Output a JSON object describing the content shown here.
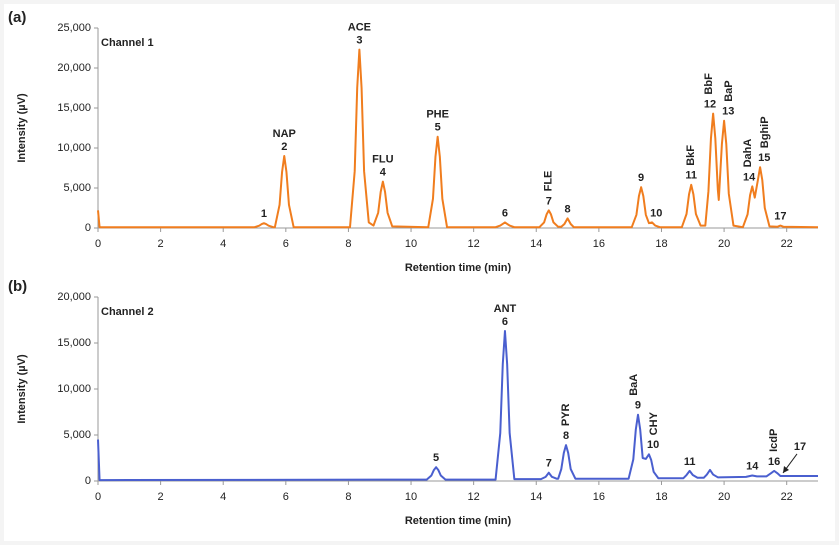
{
  "chart_data": [
    {
      "type": "line",
      "panel": "(a)",
      "channel": "Channel 1",
      "x_label": "Retention time (min)",
      "y_label": "Intensity (µV)",
      "xlim": [
        0,
        23
      ],
      "xticks": [
        0,
        2,
        4,
        6,
        8,
        10,
        12,
        14,
        16,
        18,
        20,
        22
      ],
      "ylim": [
        0,
        25000
      ],
      "yticks": [
        0,
        {
          "value": 5000,
          "label": "5,000"
        },
        {
          "value": 10000,
          "label": "10,000"
        },
        {
          "value": 15000,
          "label": "15,000"
        },
        {
          "value": 20000,
          "label": "20,000"
        },
        {
          "value": 25000,
          "label": "25,000"
        }
      ],
      "series": [
        {
          "color": "#f07d1e",
          "x": [
            0,
            0.05,
            5.0,
            5.15,
            5.23,
            5.3,
            5.37,
            5.45,
            5.6,
            5.65,
            5.8,
            5.88,
            5.95,
            6.02,
            6.1,
            6.25,
            8.05,
            8.2,
            8.28,
            8.35,
            8.42,
            8.5,
            8.65,
            8.8,
            8.95,
            9.03,
            9.1,
            9.17,
            9.25,
            9.4,
            10.55,
            10.7,
            10.78,
            10.85,
            10.92,
            11.0,
            11.15,
            12.7,
            12.85,
            13.0,
            13.15,
            13.3,
            14.1,
            14.25,
            14.33,
            14.4,
            14.47,
            14.55,
            14.7,
            14.8,
            14.9,
            15.0,
            15.1,
            15.2,
            17.05,
            17.2,
            17.28,
            17.35,
            17.42,
            17.5,
            17.6,
            17.7,
            17.8,
            17.95,
            18.65,
            18.8,
            18.88,
            18.95,
            19.02,
            19.1,
            19.25,
            19.4,
            19.5,
            19.58,
            19.65,
            19.72,
            19.8,
            19.83,
            19.93,
            20.0,
            20.07,
            20.15,
            20.3,
            20.6,
            20.75,
            20.83,
            20.9,
            20.98,
            21.08,
            21.15,
            21.22,
            21.3,
            21.45,
            21.7,
            21.8,
            21.9,
            23
          ],
          "values": [
            2200,
            100,
            100,
            290,
            490,
            600,
            490,
            290,
            100,
            100,
            2900,
            7000,
            9000,
            7000,
            2900,
            100,
            100,
            7100,
            17500,
            22300,
            17500,
            7100,
            700,
            300,
            1900,
            4500,
            5800,
            4500,
            1900,
            200,
            100,
            3650,
            8900,
            11400,
            8900,
            3650,
            100,
            100,
            300,
            700,
            300,
            100,
            100,
            700,
            1700,
            2200,
            1700,
            700,
            150,
            150,
            500,
            1200,
            500,
            100,
            100,
            1650,
            4000,
            5100,
            4000,
            1650,
            600,
            700,
            300,
            100,
            100,
            1750,
            4200,
            5400,
            4200,
            1750,
            300,
            300,
            4600,
            11200,
            14300,
            11200,
            4800,
            3500,
            10500,
            13400,
            10500,
            4300,
            300,
            100,
            1700,
            4100,
            5200,
            3800,
            6000,
            7600,
            6000,
            2500,
            200,
            150,
            300,
            150,
            100
          ]
        }
      ],
      "annotations": [
        {
          "label": "1",
          "x": 5.3,
          "y": 600
        },
        {
          "label": "2",
          "name": "NAP",
          "x": 5.95,
          "y": 9000
        },
        {
          "label": "3",
          "name": "ACE",
          "x": 8.35,
          "y": 22300
        },
        {
          "label": "4",
          "name": "FLU",
          "x": 9.1,
          "y": 5800
        },
        {
          "label": "5",
          "name": "PHE",
          "x": 10.85,
          "y": 11400
        },
        {
          "label": "6",
          "x": 13.0,
          "y": 700
        },
        {
          "label": "7",
          "name": "FLE",
          "x": 14.4,
          "y": 2200,
          "rotated": true
        },
        {
          "label": "8",
          "x": 15.0,
          "y": 1200
        },
        {
          "label": "9",
          "x": 17.35,
          "y": 5100
        },
        {
          "label": "10",
          "x": 17.7,
          "y": 700
        },
        {
          "label": "11",
          "name": "BkF",
          "x": 18.95,
          "y": 5400,
          "rotated": true
        },
        {
          "label": "12",
          "name": "BbF",
          "x": 19.65,
          "y": 14300,
          "rotated": true
        },
        {
          "label": "13",
          "name": "BaP",
          "x": 20.0,
          "y": 13400,
          "rotated": true
        },
        {
          "label": "14",
          "name": "DahA",
          "x": 20.9,
          "y": 5200,
          "rotated": true
        },
        {
          "label": "15",
          "name": "BghiP",
          "x": 21.15,
          "y": 7600,
          "rotated": true
        },
        {
          "label": "17",
          "x": 21.8,
          "y": 300
        }
      ]
    },
    {
      "type": "line",
      "panel": "(b)",
      "channel": "Channel 2",
      "x_label": "Retention time (min)",
      "y_label": "Intensity (µV)",
      "xlim": [
        0,
        23
      ],
      "xticks": [
        0,
        2,
        4,
        6,
        8,
        10,
        12,
        14,
        16,
        18,
        20,
        22
      ],
      "ylim": [
        0,
        20000
      ],
      "yticks": [
        0,
        {
          "value": 5000,
          "label": "5,000"
        },
        {
          "value": 10000,
          "label": "10,000"
        },
        {
          "value": 15000,
          "label": "15,000"
        },
        {
          "value": 20000,
          "label": "20,000"
        }
      ],
      "series": [
        {
          "color": "#4a5fcf",
          "x": [
            0,
            0.05,
            10.5,
            10.65,
            10.73,
            10.8,
            10.87,
            10.95,
            11.1,
            12.7,
            12.85,
            12.93,
            13.0,
            13.07,
            13.15,
            13.3,
            14.15,
            14.3,
            14.4,
            14.5,
            14.65,
            14.7,
            14.8,
            14.88,
            14.95,
            15.02,
            15.1,
            15.25,
            16.95,
            17.1,
            17.18,
            17.25,
            17.32,
            17.4,
            17.5,
            17.6,
            17.67,
            17.75,
            17.9,
            18.7,
            18.8,
            18.9,
            19.0,
            19.15,
            19.35,
            19.45,
            19.55,
            19.65,
            19.8,
            20.7,
            20.9,
            21.05,
            21.35,
            21.5,
            21.6,
            21.7,
            21.8,
            22.0,
            23
          ],
          "values": [
            4500,
            100,
            150,
            600,
            1200,
            1500,
            1200,
            600,
            150,
            150,
            5200,
            12700,
            16300,
            12700,
            5200,
            200,
            200,
            450,
            900,
            450,
            250,
            250,
            1300,
            3050,
            3900,
            3050,
            1300,
            250,
            250,
            2350,
            5600,
            7200,
            5600,
            2500,
            2400,
            2900,
            2300,
            1000,
            300,
            300,
            650,
            1100,
            650,
            350,
            350,
            700,
            1200,
            700,
            400,
            450,
            600,
            500,
            500,
            850,
            1100,
            850,
            550,
            550,
            550
          ]
        }
      ],
      "annotations": [
        {
          "label": "5",
          "x": 10.8,
          "y": 1500
        },
        {
          "label": "6",
          "name": "ANT",
          "x": 13.0,
          "y": 16300
        },
        {
          "label": "7",
          "x": 14.4,
          "y": 900
        },
        {
          "label": "8",
          "name": "PYR",
          "x": 14.95,
          "y": 3900,
          "rotated": true
        },
        {
          "label": "9",
          "name": "BaA",
          "x": 17.25,
          "y": 7200,
          "rotated": true
        },
        {
          "label": "10",
          "name": "CHY",
          "x": 17.6,
          "y": 2900,
          "rotated": true
        },
        {
          "label": "11",
          "x": 18.9,
          "y": 1100
        },
        {
          "label": "14",
          "x": 20.9,
          "y": 600
        },
        {
          "label": "16",
          "name": "IcdP",
          "x": 21.6,
          "y": 1100,
          "rotated": true
        },
        {
          "label": "17",
          "x": 21.85,
          "y": 550,
          "arrow": true
        }
      ]
    }
  ]
}
